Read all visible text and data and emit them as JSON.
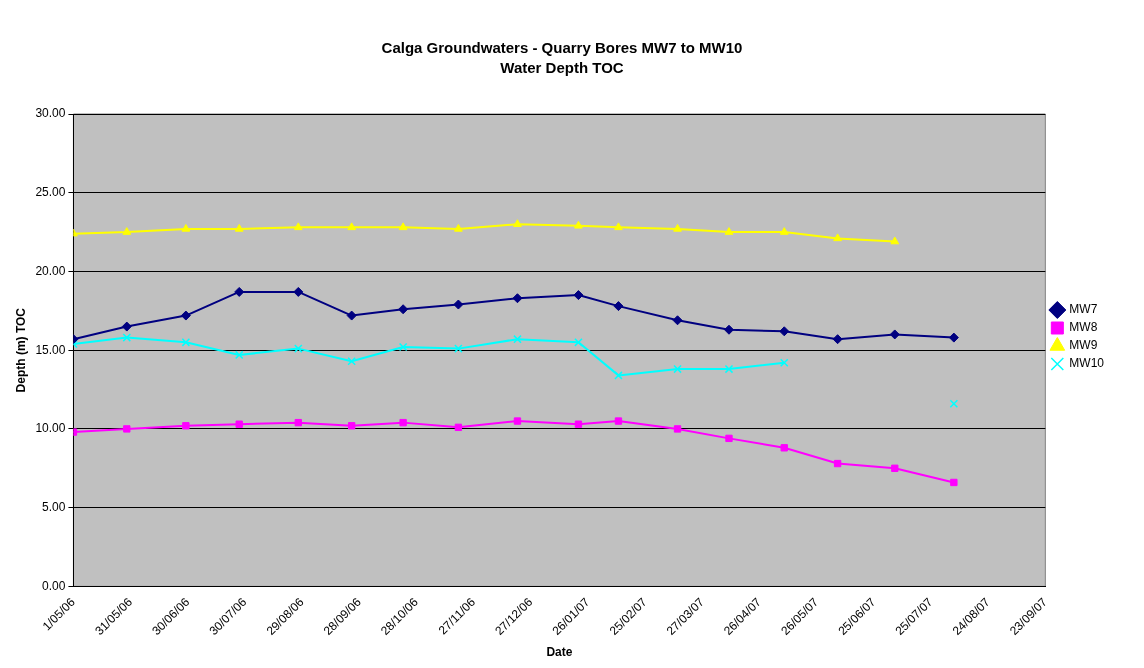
{
  "chart_data": {
    "type": "line",
    "title": "Calga Groundwaters - Quarry Bores MW7 to MW10",
    "subtitle": "Water Depth TOC",
    "xlabel": "Date",
    "ylabel": "Depth (m) TOC",
    "x": [
      "2006-05-01",
      "2006-05-29",
      "2006-06-29",
      "2006-07-27",
      "2006-08-27",
      "2006-09-24",
      "2006-10-21",
      "2006-11-19",
      "2006-12-20",
      "2007-01-21",
      "2007-02-11",
      "2007-03-14",
      "2007-04-10",
      "2007-05-09",
      "2007-06-06",
      "2007-07-06",
      "2007-08-06"
    ],
    "series": [
      {
        "name": "MW7",
        "color": "#000080",
        "marker": "diamond",
        "values": [
          15.7,
          16.5,
          17.2,
          18.7,
          18.7,
          17.2,
          17.6,
          17.9,
          18.3,
          18.5,
          17.8,
          16.9,
          16.3,
          16.2,
          15.7,
          16.0,
          15.8
        ]
      },
      {
        "name": "MW8",
        "color": "#ff00ff",
        "marker": "square",
        "values": [
          9.8,
          10.0,
          10.2,
          10.3,
          10.4,
          10.2,
          10.4,
          10.1,
          10.5,
          10.3,
          10.5,
          10.0,
          9.4,
          8.8,
          7.8,
          7.5,
          6.6
        ]
      },
      {
        "name": "MW9",
        "color": "#ffff00",
        "marker": "triangle",
        "values": [
          22.4,
          22.5,
          22.7,
          22.7,
          22.8,
          22.8,
          22.8,
          22.7,
          23.0,
          22.9,
          22.8,
          22.7,
          22.5,
          22.5,
          22.1,
          21.9,
          null
        ]
      },
      {
        "name": "MW10",
        "color": "#00ffff",
        "marker": "cross",
        "values": [
          15.4,
          15.8,
          15.5,
          14.7,
          15.1,
          14.3,
          15.2,
          15.1,
          15.7,
          15.5,
          13.4,
          13.8,
          13.8,
          14.2,
          null,
          null,
          11.6
        ]
      }
    ],
    "xlim": [
      "2006-05-01",
      "2007-09-23"
    ],
    "xticks": [
      {
        "value": "2006-05-01",
        "label": "1/05/06"
      },
      {
        "value": "2006-05-31",
        "label": "31/05/06"
      },
      {
        "value": "2006-06-30",
        "label": "30/06/06"
      },
      {
        "value": "2006-07-30",
        "label": "30/07/06"
      },
      {
        "value": "2006-08-29",
        "label": "29/08/06"
      },
      {
        "value": "2006-09-28",
        "label": "28/09/06"
      },
      {
        "value": "2006-10-28",
        "label": "28/10/06"
      },
      {
        "value": "2006-11-27",
        "label": "27/11/06"
      },
      {
        "value": "2006-12-27",
        "label": "27/12/06"
      },
      {
        "value": "2007-01-26",
        "label": "26/01/07"
      },
      {
        "value": "2007-02-25",
        "label": "25/02/07"
      },
      {
        "value": "2007-03-27",
        "label": "27/03/07"
      },
      {
        "value": "2007-04-26",
        "label": "26/04/07"
      },
      {
        "value": "2007-05-26",
        "label": "26/05/07"
      },
      {
        "value": "2007-06-25",
        "label": "25/06/07"
      },
      {
        "value": "2007-07-25",
        "label": "25/07/07"
      },
      {
        "value": "2007-08-24",
        "label": "24/08/07"
      },
      {
        "value": "2007-09-23",
        "label": "23/09/07"
      }
    ],
    "ylim": [
      0,
      30
    ],
    "yticks": [
      {
        "value": 0,
        "label": "0.00"
      },
      {
        "value": 5,
        "label": "5.00"
      },
      {
        "value": 10,
        "label": "10.00"
      },
      {
        "value": 15,
        "label": "15.00"
      },
      {
        "value": 20,
        "label": "20.00"
      },
      {
        "value": 25,
        "label": "25.00"
      },
      {
        "value": 30,
        "label": "30.00"
      }
    ],
    "grid": "y",
    "legend": "right",
    "line_style": "solid"
  }
}
